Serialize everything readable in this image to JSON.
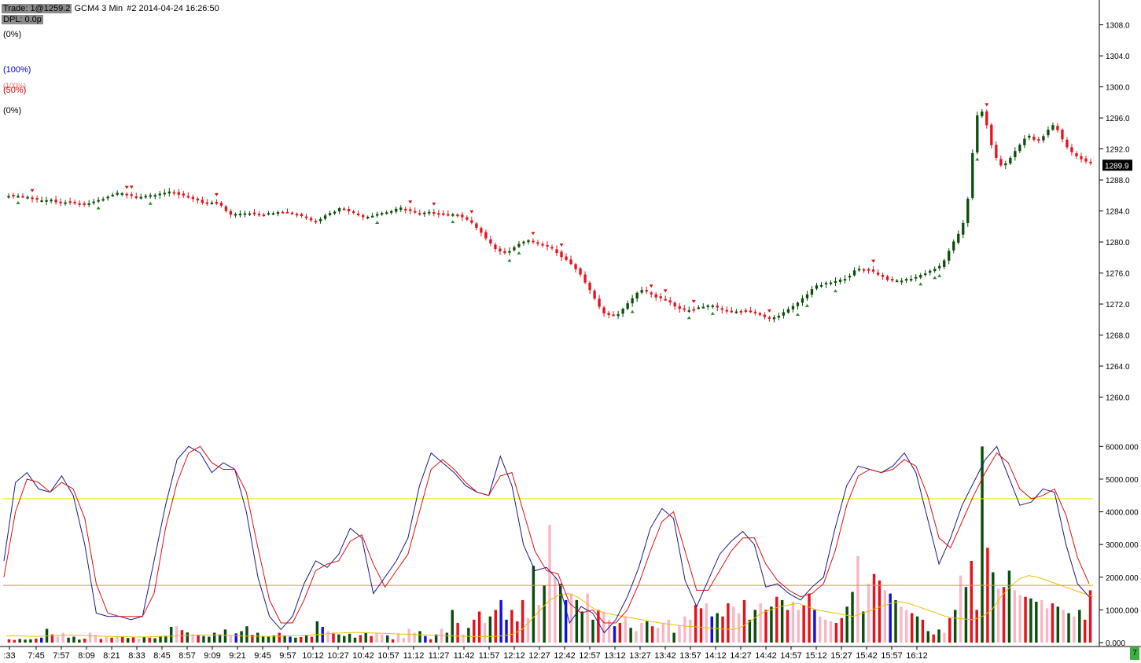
{
  "header": {
    "trade_label": "Trade: 1@1259.2",
    "symbol": "GCM4",
    "interval": "3 Min",
    "info": "#2 2014-04-24 16:26:50",
    "dpl_label": "DPL: 0.0p"
  },
  "levels": {
    "zero_top": "(0%)",
    "hundred": "(100%)",
    "hundred_ghost": "(100%)",
    "fifty": "(50%)",
    "zero_bottom": "(0%)"
  },
  "status_badge": "7",
  "colors": {
    "up_candle": "#0b4d0b",
    "down_candle": "#e8101a",
    "fast_line": "#1a1a8c",
    "slow_line": "#e01010",
    "upper_band": "#e8e600",
    "lower_band": "#e0a000",
    "volume_avg": "#e8c000",
    "volume_light": "#f7b8c4",
    "volume_blue": "#1010dd",
    "up_marker": "#2e8b2e",
    "down_marker": "#e01010"
  },
  "chart_data": [
    {
      "type": "candlestick",
      "symbol": "GCM4",
      "interval": "3 Min",
      "last_price": "1289.9",
      "price_ticks": [
        "1260.0",
        "1264.0",
        "1268.0",
        "1272.0",
        "1276.0",
        "1280.0",
        "1284.0",
        "1288.0",
        "1292.0",
        "1296.0",
        "1300.0",
        "1304.0",
        "1308.0"
      ],
      "ylim": [
        1256.0,
        1311.0
      ],
      "key_prices": [
        1286.0,
        1286.0,
        1285.8,
        1285.7,
        1285.2,
        1285.5,
        1285.0,
        1285.2,
        1285.0,
        1284.8,
        1285.2,
        1285.5,
        1286.0,
        1286.3,
        1286.2,
        1285.8,
        1285.8,
        1286.0,
        1286.2,
        1286.5,
        1286.2,
        1285.8,
        1285.5,
        1285.0,
        1285.2,
        1284.8,
        1283.4,
        1283.6,
        1283.8,
        1283.6,
        1283.5,
        1283.8,
        1284.0,
        1283.8,
        1283.5,
        1283.2,
        1282.4,
        1283.5,
        1283.8,
        1284.5,
        1284.0,
        1283.4,
        1283.2,
        1283.6,
        1283.8,
        1284.0,
        1284.5,
        1284.0,
        1283.6,
        1283.8,
        1283.8,
        1283.5,
        1283.5,
        1283.4,
        1282.6,
        1281.6,
        1280.2,
        1279.0,
        1278.5,
        1279.2,
        1280.0,
        1280.2,
        1279.8,
        1279.4,
        1278.8,
        1277.8,
        1277.0,
        1275.5,
        1273.8,
        1271.5,
        1270.5,
        1270.5,
        1271.5,
        1273.0,
        1274.0,
        1273.2,
        1272.8,
        1272.4,
        1271.5,
        1271.2,
        1271.4,
        1271.6,
        1271.8,
        1271.5,
        1271.0,
        1271.0,
        1271.2,
        1271.0,
        1270.4,
        1270.0,
        1270.6,
        1271.2,
        1272.0,
        1273.0,
        1274.2,
        1274.5,
        1274.8,
        1275.0,
        1275.5,
        1276.5,
        1276.5,
        1276.2,
        1275.5,
        1275.0,
        1275.0,
        1275.2,
        1275.5,
        1276.0,
        1276.5,
        1277.0,
        1279.5,
        1281.0,
        1284.5,
        1298.0,
        1296.0,
        1291.2,
        1289.5,
        1291.0,
        1292.5,
        1294.0,
        1292.8,
        1294.0,
        1295.5,
        1293.0,
        1291.5,
        1290.8,
        1290.2
      ],
      "time_labels": [
        ":33",
        "7:45",
        "7:57",
        "8:09",
        "8:21",
        "8:33",
        "8:45",
        "8:57",
        "9:09",
        "9:21",
        "9:45",
        "9:57",
        "10:12",
        "10:27",
        "10:42",
        "10:57",
        "11:12",
        "11:27",
        "11:42",
        "11:57",
        "12:12",
        "12:27",
        "12:42",
        "12:57",
        "13:12",
        "13:27",
        "13:42",
        "13:57",
        "14:12",
        "14:27",
        "14:42",
        "14:57",
        "15:12",
        "15:27",
        "15:42",
        "15:57",
        "16:12"
      ]
    },
    {
      "type": "line",
      "title": "",
      "series": [
        {
          "values": [
            2500,
            4900,
            5200,
            4700,
            4600,
            5100,
            4500,
            3000,
            900,
            800,
            800,
            700,
            800,
            2500,
            4200,
            5600,
            6000,
            5800,
            5200,
            5500,
            5300,
            4000,
            2000,
            800,
            400,
            800,
            1800,
            2500,
            2300,
            2700,
            3500,
            3200,
            1500,
            2000,
            2500,
            3200,
            4800,
            5800,
            5500,
            5200,
            4800,
            4600,
            4500,
            5700,
            4800,
            3000,
            2200,
            2300,
            1900,
            600,
            1100,
            900,
            300,
            700,
            1400,
            2300,
            3500,
            4100,
            3800,
            1900,
            1100,
            1900,
            2700,
            3100,
            3400,
            3000,
            1700,
            1800,
            1500,
            1300,
            1700,
            2000,
            3500,
            4800,
            5400,
            5300,
            5200,
            5400,
            5800,
            5200,
            3800,
            2400,
            3200,
            4200,
            4900,
            5600,
            6000,
            5100,
            4200,
            4300,
            4700,
            4600,
            3000,
            1800,
            1400
          ]
        },
        {
          "values": [
            2000,
            4000,
            5000,
            4900,
            4600,
            4900,
            4700,
            3800,
            1800,
            900,
            800,
            800,
            800,
            1500,
            3500,
            4900,
            5800,
            6000,
            5500,
            5300,
            5300,
            4600,
            2900,
            1300,
            600,
            600,
            1300,
            2200,
            2400,
            2500,
            3100,
            3300,
            2400,
            1700,
            2200,
            2700,
            4000,
            5300,
            5600,
            5300,
            4900,
            4600,
            4500,
            5100,
            5200,
            4000,
            2800,
            2200,
            2100,
            1200,
            900,
            1000,
            600,
            600,
            1000,
            1800,
            2800,
            3700,
            4000,
            2800,
            1600,
            1600,
            2200,
            2800,
            3200,
            3200,
            2400,
            1900,
            1600,
            1400,
            1500,
            1800,
            2800,
            4200,
            5100,
            5300,
            5200,
            5300,
            5600,
            5400,
            4500,
            3200,
            2900,
            3700,
            4500,
            5200,
            5800,
            5500,
            4700,
            4400,
            4500,
            4700,
            3900,
            2600,
            1800
          ]
        }
      ],
      "hlines": [
        4400,
        1750
      ],
      "yticks": [
        "0.000",
        "1000.000",
        "2000.000",
        "3000.000",
        "4000.000",
        "5000.000",
        "6000.000"
      ],
      "ylim": [
        0,
        6200
      ]
    },
    {
      "type": "bar",
      "title": "",
      "values": [
        100,
        80,
        110,
        90,
        100,
        120,
        150,
        420,
        250,
        180,
        300,
        150,
        180,
        90,
        120,
        300,
        240,
        110,
        180,
        150,
        200,
        180,
        140,
        160,
        120,
        180,
        150,
        130,
        200,
        210,
        480,
        500,
        380,
        310,
        250,
        230,
        200,
        180,
        300,
        250,
        400,
        220,
        280,
        350,
        500,
        240,
        300,
        200,
        180,
        220,
        300,
        220,
        180,
        150,
        170,
        220,
        180,
        650,
        480,
        350,
        300,
        250,
        200,
        270,
        150,
        230,
        300,
        200,
        280,
        250,
        220,
        100,
        280,
        150,
        420,
        300,
        350,
        200,
        100,
        250,
        420,
        300,
        1000,
        600,
        250,
        450,
        700,
        950,
        600,
        800,
        1000,
        1300,
        700,
        1000,
        650,
        1300,
        750,
        2350,
        1150,
        1750,
        3600,
        2000,
        1800,
        1300,
        1500,
        1300,
        950,
        1500,
        700,
        1000,
        950,
        700,
        500,
        600,
        800,
        450,
        350,
        600,
        650,
        500,
        450,
        600,
        700,
        300,
        500,
        800,
        700,
        1150,
        1050,
        1200,
        800,
        900,
        800,
        1200,
        1100,
        900,
        1300,
        700,
        1000,
        1200,
        1000,
        1100,
        1400,
        1300,
        1000,
        1250,
        1000,
        1150,
        1500,
        1000,
        800,
        700,
        650,
        600,
        750,
        1100,
        1550,
        2650,
        950,
        1800,
        2100,
        1900,
        1600,
        1500,
        1300,
        1100,
        1000,
        900,
        800,
        700,
        350,
        250,
        400,
        300,
        750,
        1000,
        2050,
        1700,
        2500,
        1000,
        6000,
        2900,
        2150,
        1650,
        1700,
        2200,
        1600,
        1450,
        1400,
        1350,
        1250,
        1300,
        1050,
        1200,
        1100,
        1000,
        900,
        800,
        1000,
        700,
        1600
      ],
      "avg_values": [
        200,
        210,
        200,
        190,
        200,
        210,
        220,
        230,
        220,
        210,
        200,
        190,
        180,
        180,
        170,
        170,
        180,
        190,
        200,
        210,
        220,
        230,
        230,
        230,
        220,
        210,
        200,
        200,
        190,
        190,
        200,
        210,
        220,
        230,
        250,
        270,
        290,
        300,
        310,
        300,
        290,
        280,
        270,
        260,
        250,
        240,
        230,
        220,
        210,
        200,
        190,
        180,
        180,
        190,
        210,
        260,
        400,
        700,
        1000,
        1300,
        1450,
        1500,
        1400,
        1200,
        1000,
        900,
        850,
        800,
        750,
        700,
        650,
        600,
        560,
        520,
        500,
        480,
        450,
        430,
        410,
        400,
        500,
        700,
        900,
        1000,
        1100,
        1150,
        1200,
        1100,
        1000,
        950,
        900,
        850,
        800,
        900,
        1000,
        1100,
        1200,
        1250,
        1200,
        1100,
        1000,
        900,
        800,
        750,
        720,
        700,
        800,
        1000,
        1400,
        1700,
        1950,
        2050,
        2000,
        1900,
        1800,
        1700,
        1600,
        1500,
        1400
      ],
      "ylim": [
        0,
        6200
      ]
    }
  ]
}
